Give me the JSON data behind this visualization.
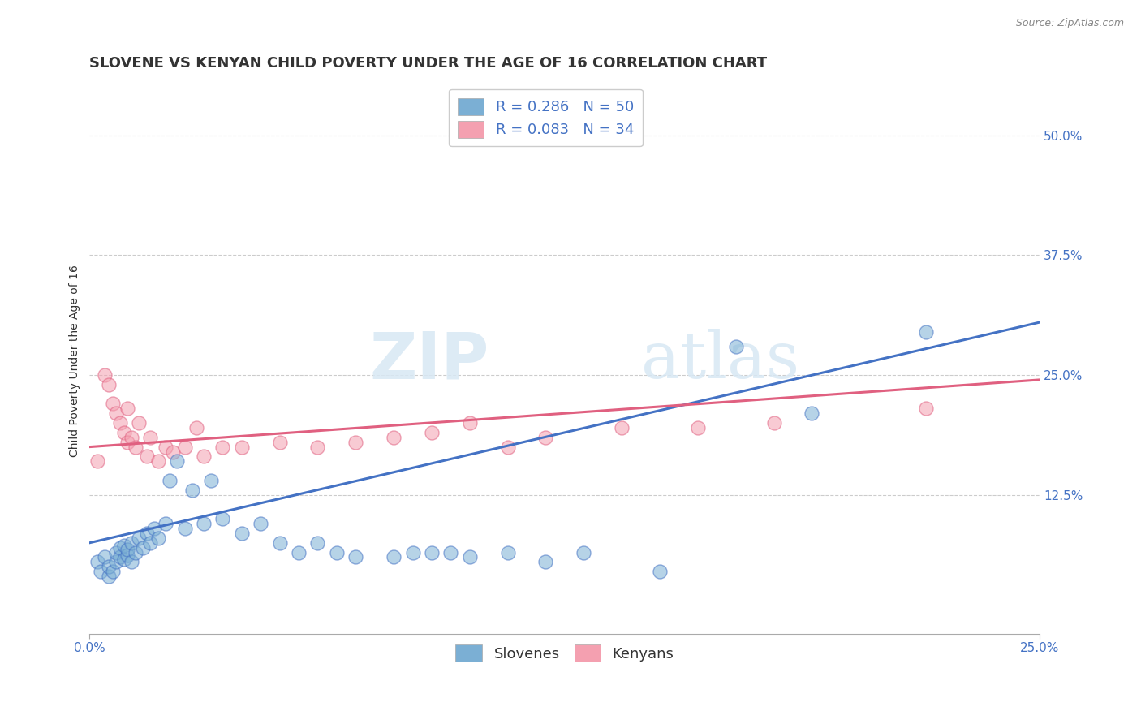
{
  "title": "SLOVENE VS KENYAN CHILD POVERTY UNDER THE AGE OF 16 CORRELATION CHART",
  "source": "Source: ZipAtlas.com",
  "ylabel": "Child Poverty Under the Age of 16",
  "xlim": [
    0.0,
    0.25
  ],
  "ylim": [
    -0.02,
    0.55
  ],
  "xticks": [
    0.0,
    0.25
  ],
  "xticklabels": [
    "0.0%",
    "25.0%"
  ],
  "yticks_right": [
    0.125,
    0.25,
    0.375,
    0.5
  ],
  "yticks_right_labels": [
    "12.5%",
    "25.0%",
    "37.5%",
    "50.0%"
  ],
  "legend_r1": "R = 0.286",
  "legend_n1": "N = 50",
  "legend_r2": "R = 0.083",
  "legend_n2": "N = 34",
  "slovene_color": "#7BAFD4",
  "kenyan_color": "#F4A0B0",
  "slovene_line_color": "#4472C4",
  "kenyan_line_color": "#E06080",
  "background_color": "#FFFFFF",
  "grid_color": "#CCCCCC",
  "slovene_x": [
    0.002,
    0.003,
    0.004,
    0.005,
    0.005,
    0.006,
    0.007,
    0.007,
    0.008,
    0.008,
    0.009,
    0.009,
    0.01,
    0.01,
    0.011,
    0.011,
    0.012,
    0.013,
    0.014,
    0.015,
    0.016,
    0.017,
    0.018,
    0.02,
    0.021,
    0.023,
    0.025,
    0.027,
    0.03,
    0.032,
    0.035,
    0.04,
    0.045,
    0.05,
    0.055,
    0.06,
    0.065,
    0.07,
    0.08,
    0.085,
    0.09,
    0.095,
    0.1,
    0.11,
    0.12,
    0.13,
    0.15,
    0.17,
    0.19,
    0.22
  ],
  "slovene_y": [
    0.055,
    0.045,
    0.06,
    0.04,
    0.05,
    0.045,
    0.055,
    0.065,
    0.06,
    0.07,
    0.058,
    0.072,
    0.062,
    0.068,
    0.055,
    0.075,
    0.065,
    0.08,
    0.07,
    0.085,
    0.075,
    0.09,
    0.08,
    0.095,
    0.14,
    0.16,
    0.09,
    0.13,
    0.095,
    0.14,
    0.1,
    0.085,
    0.095,
    0.075,
    0.065,
    0.075,
    0.065,
    0.06,
    0.06,
    0.065,
    0.065,
    0.065,
    0.06,
    0.065,
    0.055,
    0.065,
    0.045,
    0.28,
    0.21,
    0.295
  ],
  "kenyan_x": [
    0.002,
    0.004,
    0.005,
    0.006,
    0.007,
    0.008,
    0.009,
    0.01,
    0.01,
    0.011,
    0.012,
    0.013,
    0.015,
    0.016,
    0.018,
    0.02,
    0.022,
    0.025,
    0.028,
    0.03,
    0.035,
    0.04,
    0.05,
    0.06,
    0.07,
    0.08,
    0.09,
    0.1,
    0.11,
    0.12,
    0.14,
    0.16,
    0.18,
    0.22
  ],
  "kenyan_y": [
    0.16,
    0.25,
    0.24,
    0.22,
    0.21,
    0.2,
    0.19,
    0.215,
    0.18,
    0.185,
    0.175,
    0.2,
    0.165,
    0.185,
    0.16,
    0.175,
    0.17,
    0.175,
    0.195,
    0.165,
    0.175,
    0.175,
    0.18,
    0.175,
    0.18,
    0.185,
    0.19,
    0.2,
    0.175,
    0.185,
    0.195,
    0.195,
    0.2,
    0.215
  ],
  "slovene_trendline": [
    [
      0.0,
      0.075
    ],
    [
      0.25,
      0.305
    ]
  ],
  "kenyan_trendline": [
    [
      0.0,
      0.175
    ],
    [
      0.25,
      0.245
    ]
  ],
  "watermark_zip": "ZIP",
  "watermark_atlas": "atlas",
  "title_fontsize": 13,
  "axis_label_fontsize": 10,
  "tick_fontsize": 11,
  "legend_fontsize": 13
}
